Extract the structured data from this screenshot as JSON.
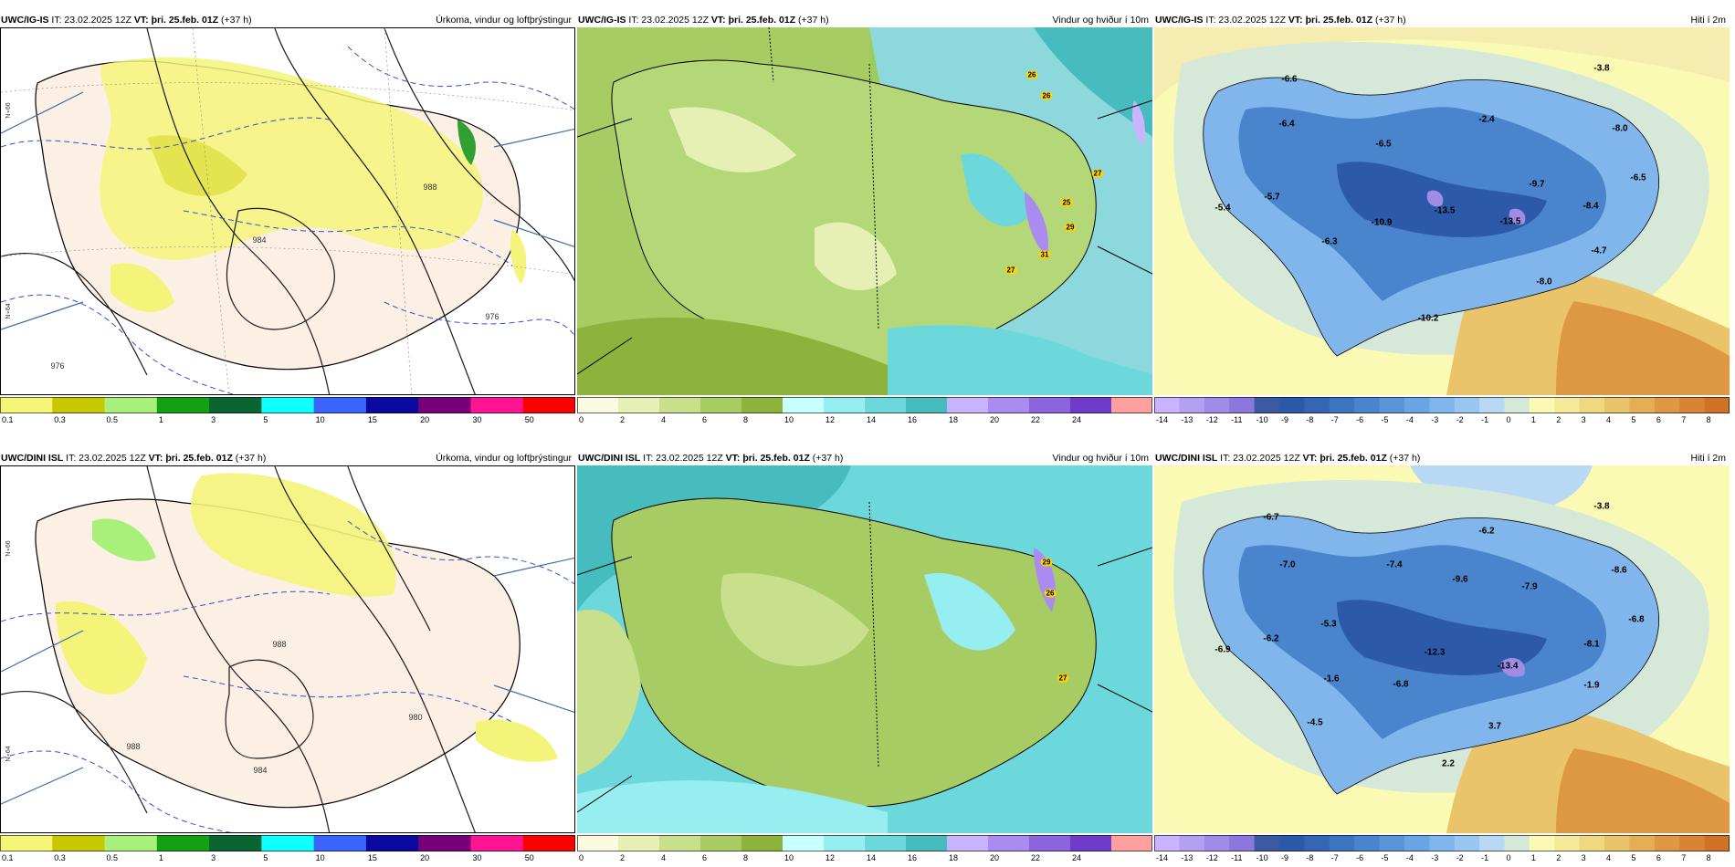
{
  "panels": [
    {
      "model": "UWC/IG-IS",
      "it": "IT: 23.02.2025 12Z",
      "vt": "VT: þri. 25.feb. 01Z",
      "lead": "(+37 h)",
      "title": "Úrkoma, vindur og loftþrýstingur",
      "type": "precip"
    },
    {
      "model": "UWC/IG-IS",
      "it": "IT: 23.02.2025 12Z",
      "vt": "VT: þri. 25.feb. 01Z",
      "lead": "(+37 h)",
      "title": "Vindur og hviður í 10m",
      "type": "wind"
    },
    {
      "model": "UWC/IG-IS",
      "it": "IT: 23.02.2025 12Z",
      "vt": "VT: þri. 25.feb. 01Z",
      "lead": "(+37 h)",
      "title": "Hiti í 2m",
      "type": "temp"
    },
    {
      "model": "UWC/DINI ISL",
      "it": "IT: 23.02.2025 12Z",
      "vt": "VT: þri. 25.feb. 01Z",
      "lead": "(+37 h)",
      "title": "Úrkoma, vindur og loftþrýstingur",
      "type": "precip"
    },
    {
      "model": "UWC/DINI ISL",
      "it": "IT: 23.02.2025 12Z",
      "vt": "VT: þri. 25.feb. 01Z",
      "lead": "(+37 h)",
      "title": "Vindur og hviður í 10m",
      "type": "wind"
    },
    {
      "model": "UWC/DINI ISL",
      "it": "IT: 23.02.2025 12Z",
      "vt": "VT: þri. 25.feb. 01Z",
      "lead": "(+37 h)",
      "title": "Hiti í 2m",
      "type": "temp"
    }
  ],
  "precip_scale": {
    "labels": [
      "0.1",
      "0.3",
      "0.5",
      "1",
      "3",
      "5",
      "10",
      "15",
      "20",
      "30",
      "50"
    ],
    "colors": [
      "#f5f577",
      "#c8c800",
      "#a8f07a",
      "#14a014",
      "#0a6432",
      "#10ffff",
      "#3c64ff",
      "#0a0aa0",
      "#780078",
      "#ff1493",
      "#ff0000"
    ]
  },
  "wind_scale": {
    "labels": [
      "0",
      "2",
      "4",
      "6",
      "8",
      "10",
      "12",
      "14",
      "16",
      "18",
      "20",
      "22",
      "24"
    ],
    "colors": [
      "#fafae0",
      "#e6f0b4",
      "#c8e08c",
      "#a8cc64",
      "#8cb43c",
      "#c8ffff",
      "#96eef0",
      "#6cd8dc",
      "#46bcbe",
      "#c8b4ff",
      "#aa8cf0",
      "#8c64dc",
      "#6e3cc8",
      "#ffa0a0"
    ]
  },
  "temp_scale": {
    "labels": [
      "-14",
      "-13",
      "-12",
      "-11",
      "-10",
      "-9",
      "-8",
      "-7",
      "-6",
      "-5",
      "-4",
      "-3",
      "-2",
      "-1",
      "0",
      "1",
      "2",
      "3",
      "4",
      "5",
      "6",
      "7",
      "8"
    ],
    "colors": [
      "#c8b4ff",
      "#b4a0f0",
      "#a08ce6",
      "#8c78dc",
      "#3c5aa0",
      "#2c5aa8",
      "#3466b4",
      "#3c74c0",
      "#4a84cc",
      "#5894d8",
      "#6aa4e2",
      "#80b6ec",
      "#9ac6f2",
      "#b8d8f4",
      "#d6e8d8",
      "#fafab4",
      "#f5e99a",
      "#efd880",
      "#eac46a",
      "#e4ae56",
      "#de9844",
      "#d88434",
      "#d07228"
    ]
  },
  "wind_gust_labels": {
    "top": [
      "26",
      "26",
      "27",
      "25",
      "29",
      "27",
      "31"
    ],
    "bottom": [
      "29",
      "26",
      "27"
    ]
  },
  "temp_labels": {
    "top": [
      "-6.6",
      "-6.4",
      "-6.5",
      "-2.4",
      "-3.8",
      "-8.0",
      "-6.5",
      "-9.7",
      "-5.7",
      "-5.4",
      "-10.9",
      "-13.5",
      "-13.5",
      "-8.4",
      "-6.3",
      "-4.7",
      "-8.0",
      "-10.2"
    ],
    "bottom": [
      "-6.7",
      "-7.0",
      "-7.4",
      "-9.6",
      "-6.2",
      "-3.8",
      "-8.6",
      "-7.9",
      "-5.3",
      "-6.2",
      "-6.9",
      "-12.3",
      "-13.4",
      "-8.1",
      "-6.8",
      "-1.6",
      "-6.8",
      "-1.9",
      "-4.5",
      "3.7",
      "2.2"
    ]
  },
  "pressure_labels": {
    "top": [
      "976",
      "984",
      "988",
      "976"
    ],
    "bottom": [
      "988",
      "984",
      "980",
      "988"
    ]
  },
  "lat_labels": [
    "N∘66",
    "N∘66",
    "N∘64",
    "N∘64"
  ]
}
